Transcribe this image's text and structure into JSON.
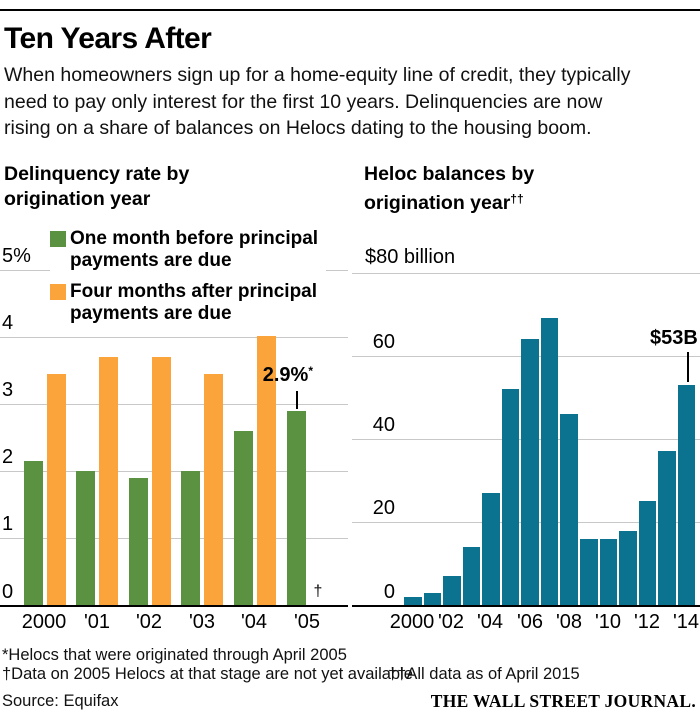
{
  "header": {
    "title": "Ten Years After",
    "description": "When homeowners sign up for a home-equity line of credit, they typically\nneed to pay only interest for the first 10 years. Delinquencies are now\nrising on a share of balances on Helocs dating to the housing boom."
  },
  "colors": {
    "green": "#5b9241",
    "orange": "#fba43c",
    "teal": "#0b7290",
    "gridline": "#c8c8c8",
    "axis": "#000000"
  },
  "left_chart": {
    "title_line1": "Delinquency rate by",
    "title_line2": "origination year",
    "legend": [
      {
        "color_key": "green",
        "label": "One month before principal\npayments are due"
      },
      {
        "color_key": "orange",
        "label": "Four months after principal\npayments are due"
      }
    ],
    "annotation": {
      "value": "2.9%",
      "sup": "*"
    },
    "missing_data_mark": "†",
    "chart_data": {
      "type": "bar",
      "categories": [
        "2000",
        "'01",
        "'02",
        "'03",
        "'04",
        "'05"
      ],
      "series": [
        {
          "name": "One month before principal payments are due",
          "color_key": "green",
          "values": [
            2.15,
            2.0,
            1.9,
            2.0,
            2.6,
            2.9
          ]
        },
        {
          "name": "Four months after principal payments are due",
          "color_key": "orange",
          "values": [
            3.45,
            3.7,
            3.7,
            3.45,
            4.2,
            null
          ]
        }
      ],
      "title": "Delinquency rate by origination year",
      "ylim": [
        0,
        5
      ],
      "yticks": [
        5,
        4,
        3,
        2,
        1,
        0
      ],
      "ytick_labels": [
        "5%",
        "4",
        "3",
        "2",
        "1",
        "0"
      ],
      "grid": true,
      "legend_position": "top"
    }
  },
  "right_chart": {
    "title_line1": "Heloc balances by",
    "title_line2": "origination year",
    "title_sup": "††",
    "annotation": "$53B",
    "chart_data": {
      "type": "bar",
      "x": [
        2000,
        2001,
        2002,
        2003,
        2004,
        2005,
        2006,
        2007,
        2008,
        2009,
        2010,
        2011,
        2012,
        2013,
        2014
      ],
      "values": [
        2,
        3,
        7,
        14,
        27,
        52,
        64,
        69,
        46,
        16,
        16,
        18,
        25,
        37,
        53
      ],
      "x_tick_labels": [
        "2000",
        "'02",
        "'04",
        "'06",
        "'08",
        "'10",
        "'12",
        "'14"
      ],
      "title": "Heloc balances by origination year",
      "ylim": [
        0,
        80
      ],
      "yticks": [
        80,
        60,
        40,
        20,
        0
      ],
      "ytick_labels": [
        "$80 billion",
        "60",
        "40",
        "20",
        "0"
      ],
      "grid": true,
      "unit": "billion USD"
    }
  },
  "footnotes": {
    "line1": "*Helocs that were originated through April 2005",
    "line2a": "†Data on 2005 Helocs at that stage are not yet available",
    "line2b": "††All data as of April 2015"
  },
  "source": "Source: Equifax",
  "credit": "THE WALL STREET JOURNAL."
}
